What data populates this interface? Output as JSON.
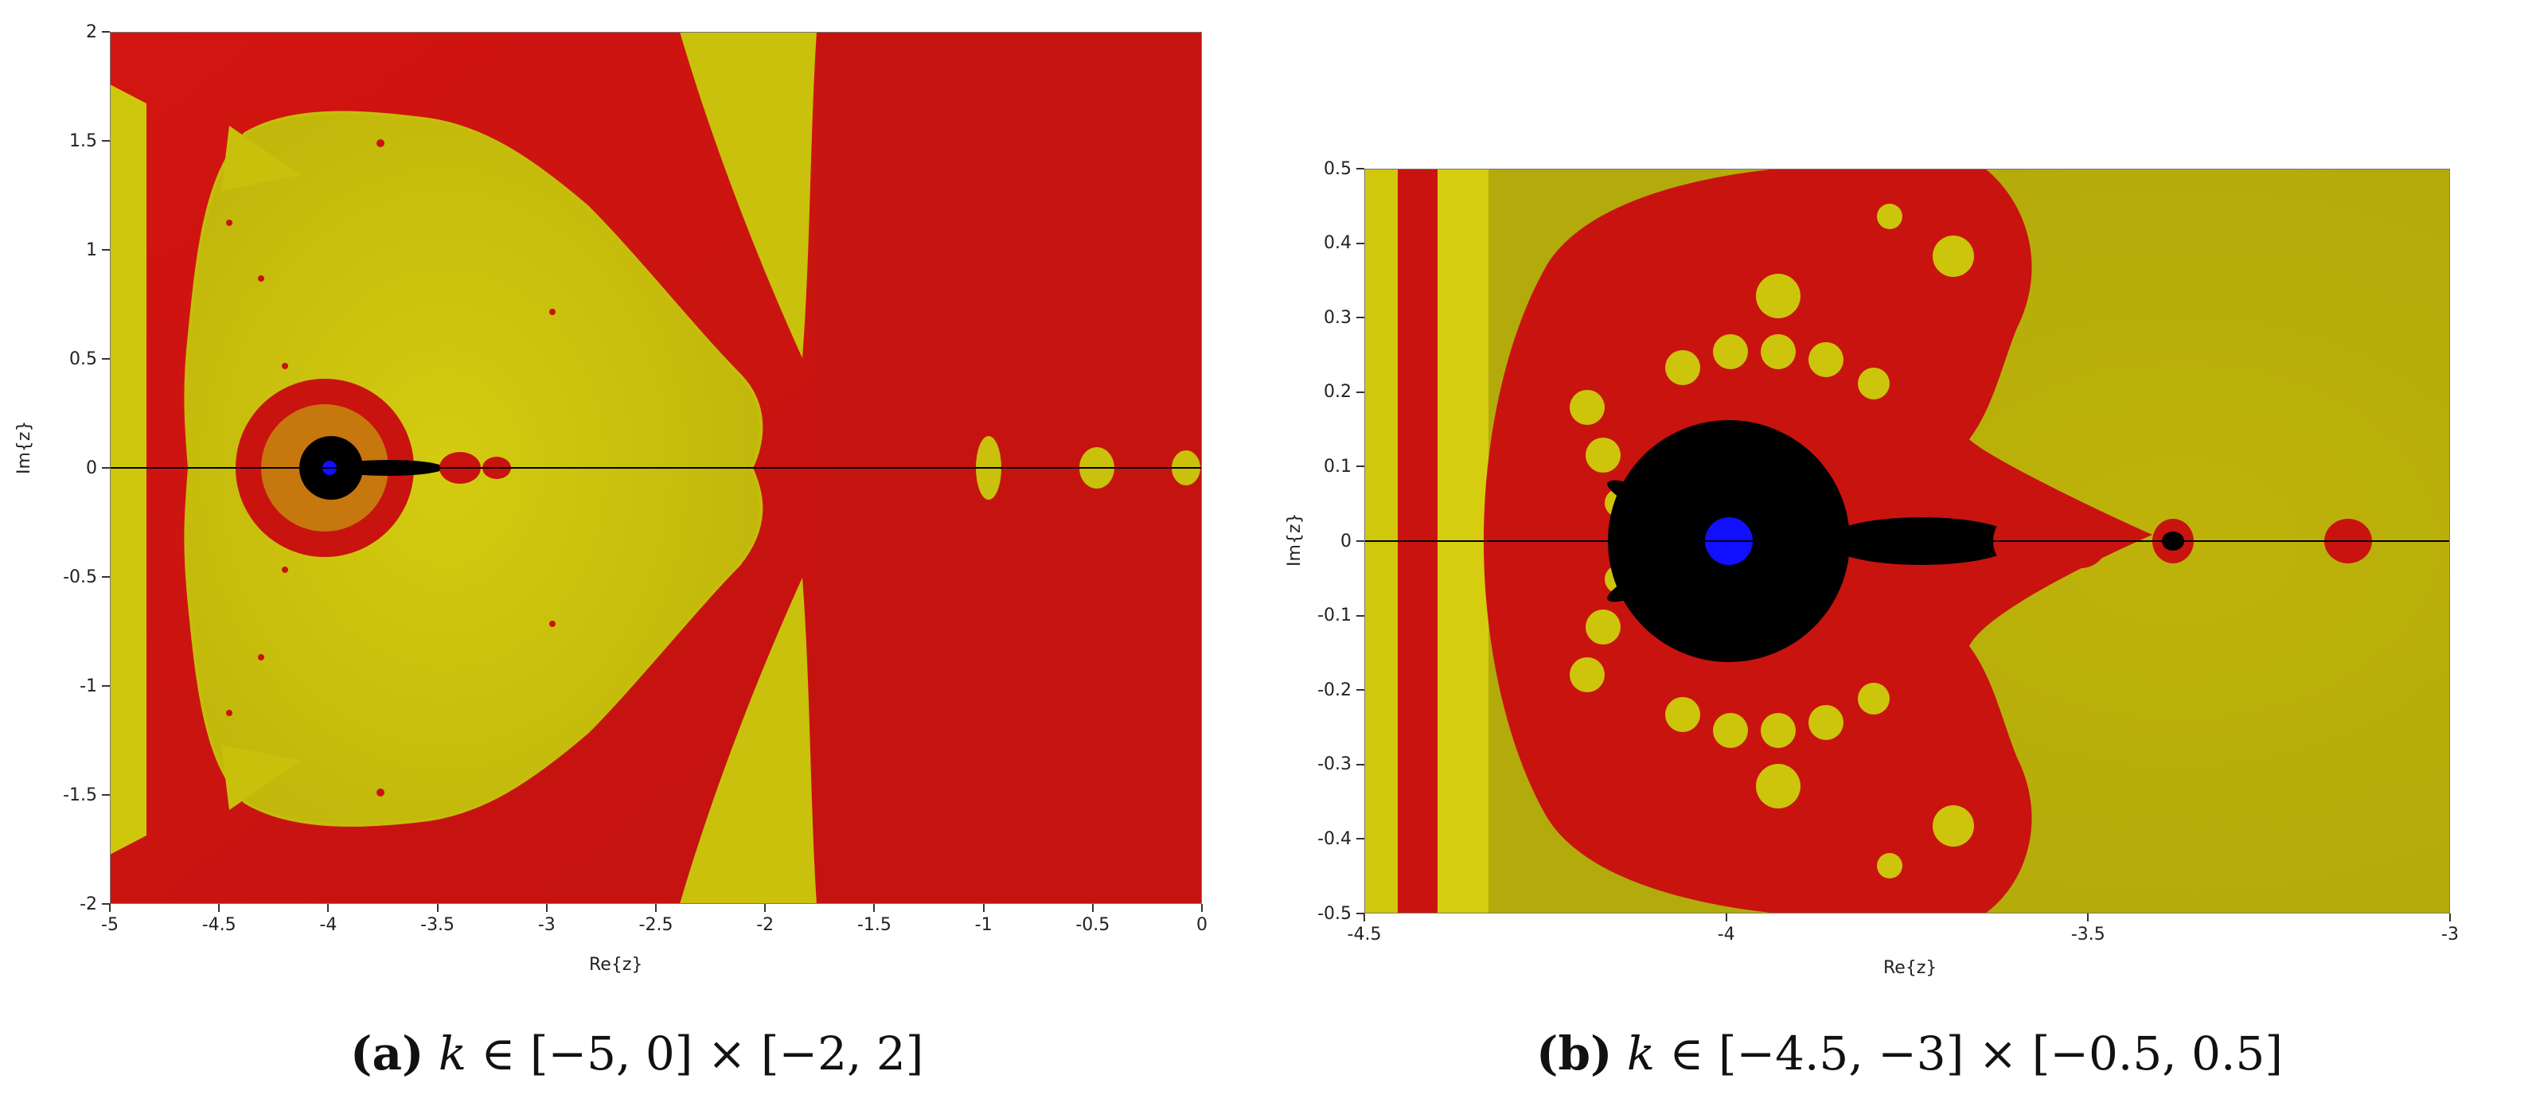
{
  "chart_data": [
    {
      "type": "heatmap",
      "title": "",
      "xlabel": "Re{z}",
      "ylabel": "Im{z}",
      "xlim": [
        -5,
        0
      ],
      "ylim": [
        -2,
        2
      ],
      "x_ticks": [
        "-5",
        "-4.5",
        "-4",
        "-3.5",
        "-3",
        "-2.5",
        "-2",
        "-1.5",
        "-1",
        "-0.5",
        "0"
      ],
      "y_ticks": [
        "2",
        "1.5",
        "1",
        "0.5",
        "0",
        "-0.5",
        "-1",
        "-1.5",
        "-2"
      ],
      "colors": {
        "red": "#c8130f",
        "yellow": "#c9c20a",
        "black": "#000000",
        "blue": "#1010ff"
      },
      "caption": {
        "label": "(a)",
        "variable": "k",
        "text": " ∈ [−5, 0] × [−2, 2]"
      }
    },
    {
      "type": "heatmap",
      "title": "",
      "xlabel": "Re{z}",
      "ylabel": "Im{z}",
      "xlim": [
        -4.5,
        -3
      ],
      "ylim": [
        -0.5,
        0.5
      ],
      "x_ticks": [
        "-4.5",
        "-4",
        "-3.5",
        "-3"
      ],
      "y_ticks": [
        "0.5",
        "0.4",
        "0.3",
        "0.2",
        "0.1",
        "0",
        "-0.1",
        "-0.2",
        "-0.3",
        "-0.4",
        "-0.5"
      ],
      "colors": {
        "red": "#c8130f",
        "yellow": "#c9c20a",
        "black": "#000000",
        "blue": "#1010ff"
      },
      "caption": {
        "label": "(b)",
        "variable": "k",
        "text": " ∈ [−4.5, −3] × [−0.5, 0.5]"
      }
    }
  ]
}
